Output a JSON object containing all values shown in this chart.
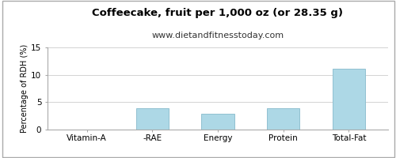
{
  "title": "Coffeecake, fruit per 1,000 oz (or 28.35 g)",
  "subtitle": "www.dietandfitnesstoday.com",
  "categories": [
    "Vitamin-A",
    "-RAE",
    "Energy",
    "Protein",
    "Total-Fat"
  ],
  "values": [
    0.0,
    3.9,
    2.9,
    3.9,
    11.1
  ],
  "bar_color": "#add8e6",
  "bar_edge_color": "#90c0d0",
  "ylabel": "Percentage of RDH (%)",
  "ylim": [
    0,
    15
  ],
  "yticks": [
    0,
    5,
    10,
    15
  ],
  "background_color": "#ffffff",
  "grid_color": "#cccccc",
  "border_color": "#aaaaaa",
  "title_fontsize": 9.5,
  "subtitle_fontsize": 8,
  "label_fontsize": 7,
  "tick_fontsize": 7.5
}
